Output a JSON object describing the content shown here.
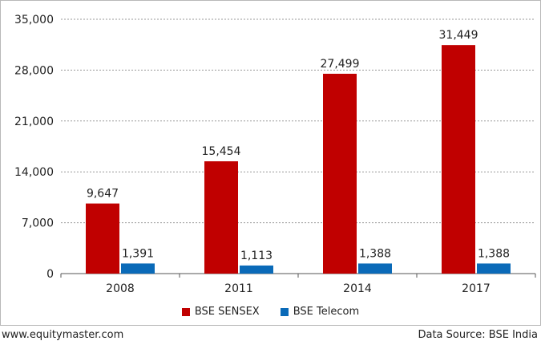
{
  "chart_data": {
    "type": "bar",
    "categories": [
      "2008",
      "2011",
      "2014",
      "2017"
    ],
    "series": [
      {
        "name": "BSE SENSEX",
        "values": [
          9647,
          15454,
          27499,
          31449
        ],
        "labels": [
          "9,647",
          "15,454",
          "27,499",
          "31,449"
        ],
        "color": "#c00000"
      },
      {
        "name": "BSE Telecom",
        "values": [
          1391,
          1113,
          1388,
          1388
        ],
        "labels": [
          "1,391",
          "1,113",
          "1,388",
          "1,388"
        ],
        "color": "#0a6ab8"
      }
    ],
    "y_ticks": [
      0,
      7000,
      14000,
      21000,
      28000,
      35000
    ],
    "y_tick_labels": [
      "0",
      "7,000",
      "14,000",
      "21,000",
      "28,000",
      "35,000"
    ],
    "ylim": [
      0,
      35000
    ],
    "grid": "horizontal-dotted",
    "legend_position": "bottom-center"
  },
  "footer": {
    "left": "www.equitymaster.com",
    "right": "Data Source: BSE India"
  }
}
